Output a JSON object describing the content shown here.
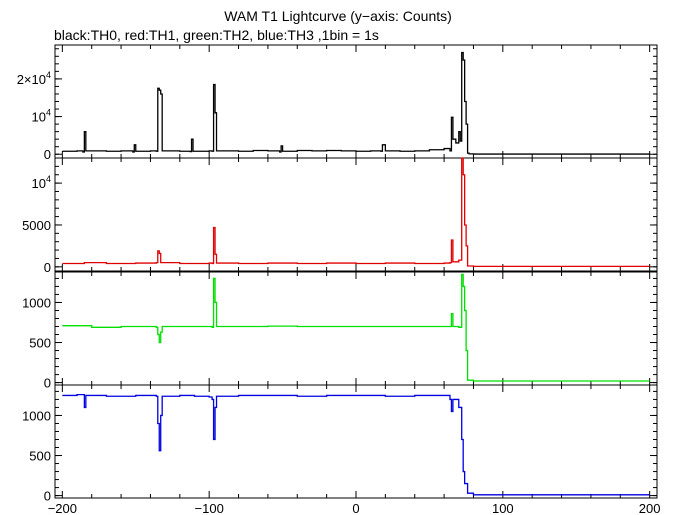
{
  "chart_data": {
    "type": "line",
    "title": "WAM T1 Lightcurve (y−axis: Counts)",
    "subtitle": "black:TH0, red:TH1, green:TH2, blue:TH3 ,1bin = 1s",
    "xlim": [
      -205,
      205
    ],
    "x_ticks": [
      -200,
      -100,
      0,
      100,
      200
    ],
    "x_tick_labels": [
      "−200",
      "−100",
      "0",
      "100",
      "200"
    ],
    "panels": [
      {
        "name": "TH0",
        "color": "#000000",
        "ylim": [
          -1000,
          29000
        ],
        "y_ticks": [
          {
            "value": 0,
            "label": "0"
          },
          {
            "value": 10000,
            "label": "10",
            "sup": "4"
          },
          {
            "value": 20000,
            "label": "2×10",
            "sup": "4"
          }
        ],
        "points": [
          [
            -200,
            800
          ],
          [
            -190,
            900
          ],
          [
            -186,
            600
          ],
          [
            -185,
            6000
          ],
          [
            -184,
            900
          ],
          [
            -170,
            800
          ],
          [
            -160,
            900
          ],
          [
            -152,
            600
          ],
          [
            -151,
            2500
          ],
          [
            -150,
            800
          ],
          [
            -140,
            900
          ],
          [
            -136,
            800
          ],
          [
            -135,
            17500
          ],
          [
            -134,
            17000
          ],
          [
            -133,
            16000
          ],
          [
            -132,
            900
          ],
          [
            -120,
            800
          ],
          [
            -113,
            700
          ],
          [
            -112,
            4000
          ],
          [
            -111,
            800
          ],
          [
            -100,
            900
          ],
          [
            -98,
            800
          ],
          [
            -97,
            18500
          ],
          [
            -96,
            11000
          ],
          [
            -95,
            900
          ],
          [
            -80,
            800
          ],
          [
            -70,
            1000
          ],
          [
            -60,
            900
          ],
          [
            -52,
            600
          ],
          [
            -51,
            2200
          ],
          [
            -50,
            800
          ],
          [
            -40,
            1000
          ],
          [
            -30,
            900
          ],
          [
            -20,
            1000
          ],
          [
            -10,
            900
          ],
          [
            0,
            800
          ],
          [
            10,
            900
          ],
          [
            17,
            800
          ],
          [
            18,
            2500
          ],
          [
            20,
            900
          ],
          [
            30,
            800
          ],
          [
            40,
            900
          ],
          [
            50,
            1200
          ],
          [
            60,
            1500
          ],
          [
            64,
            900
          ],
          [
            65,
            9800
          ],
          [
            66,
            4000
          ],
          [
            68,
            3000
          ],
          [
            70,
            6000
          ],
          [
            71,
            3500
          ],
          [
            72,
            27000
          ],
          [
            73,
            25000
          ],
          [
            74,
            14000
          ],
          [
            75,
            8000
          ],
          [
            76,
            300
          ],
          [
            77,
            100
          ],
          [
            80,
            50
          ],
          [
            100,
            50
          ],
          [
            150,
            50
          ],
          [
            200,
            50
          ]
        ]
      },
      {
        "name": "TH1",
        "color": "#e00000",
        "ylim": [
          -500,
          13000
        ],
        "y_ticks": [
          {
            "value": 0,
            "label": "0"
          },
          {
            "value": 5000,
            "label": "5000"
          },
          {
            "value": 10000,
            "label": "10",
            "sup": "4"
          }
        ],
        "points": [
          [
            -200,
            400
          ],
          [
            -185,
            500
          ],
          [
            -170,
            400
          ],
          [
            -150,
            450
          ],
          [
            -136,
            500
          ],
          [
            -135,
            1900
          ],
          [
            -134,
            1600
          ],
          [
            -133,
            500
          ],
          [
            -120,
            400
          ],
          [
            -100,
            450
          ],
          [
            -98,
            400
          ],
          [
            -97,
            4700
          ],
          [
            -96,
            1500
          ],
          [
            -95,
            450
          ],
          [
            -80,
            400
          ],
          [
            -60,
            450
          ],
          [
            -40,
            400
          ],
          [
            -20,
            450
          ],
          [
            0,
            400
          ],
          [
            20,
            450
          ],
          [
            40,
            400
          ],
          [
            60,
            450
          ],
          [
            64,
            500
          ],
          [
            65,
            3200
          ],
          [
            66,
            600
          ],
          [
            70,
            800
          ],
          [
            72,
            13000
          ],
          [
            73,
            11000
          ],
          [
            74,
            5000
          ],
          [
            75,
            2500
          ],
          [
            76,
            100
          ],
          [
            80,
            50
          ],
          [
            120,
            50
          ],
          [
            200,
            50
          ]
        ]
      },
      {
        "name": "TH2",
        "color": "#00e000",
        "ylim": [
          -30,
          1380
        ],
        "y_ticks": [
          {
            "value": 0,
            "label": "0"
          },
          {
            "value": 500,
            "label": "500"
          },
          {
            "value": 1000,
            "label": "1000"
          }
        ],
        "points": [
          [
            -200,
            710
          ],
          [
            -180,
            690
          ],
          [
            -160,
            700
          ],
          [
            -140,
            700
          ],
          [
            -136,
            690
          ],
          [
            -135,
            600
          ],
          [
            -134,
            500
          ],
          [
            -133,
            630
          ],
          [
            -132,
            700
          ],
          [
            -120,
            700
          ],
          [
            -100,
            700
          ],
          [
            -98,
            690
          ],
          [
            -97,
            1300
          ],
          [
            -96,
            1000
          ],
          [
            -95,
            700
          ],
          [
            -80,
            700
          ],
          [
            -60,
            705
          ],
          [
            -40,
            700
          ],
          [
            -20,
            700
          ],
          [
            0,
            700
          ],
          [
            20,
            700
          ],
          [
            40,
            700
          ],
          [
            60,
            700
          ],
          [
            64,
            700
          ],
          [
            65,
            860
          ],
          [
            66,
            700
          ],
          [
            70,
            690
          ],
          [
            72,
            1350
          ],
          [
            73,
            1200
          ],
          [
            74,
            900
          ],
          [
            75,
            400
          ],
          [
            76,
            30
          ],
          [
            80,
            20
          ],
          [
            120,
            20
          ],
          [
            200,
            20
          ]
        ]
      },
      {
        "name": "TH3",
        "color": "#0000e0",
        "ylim": [
          -30,
          1380
        ],
        "y_ticks": [
          {
            "value": 0,
            "label": "0"
          },
          {
            "value": 500,
            "label": "500"
          },
          {
            "value": 1000,
            "label": "1000"
          }
        ],
        "points": [
          [
            -200,
            1250
          ],
          [
            -190,
            1260
          ],
          [
            -185,
            1100
          ],
          [
            -184,
            1250
          ],
          [
            -170,
            1240
          ],
          [
            -150,
            1250
          ],
          [
            -136,
            1240
          ],
          [
            -135,
            900
          ],
          [
            -134,
            560
          ],
          [
            -133,
            1000
          ],
          [
            -132,
            1240
          ],
          [
            -120,
            1250
          ],
          [
            -110,
            1240
          ],
          [
            -100,
            1230
          ],
          [
            -98,
            1200
          ],
          [
            -97,
            700
          ],
          [
            -96,
            1100
          ],
          [
            -95,
            1240
          ],
          [
            -80,
            1250
          ],
          [
            -60,
            1250
          ],
          [
            -40,
            1240
          ],
          [
            -20,
            1250
          ],
          [
            0,
            1250
          ],
          [
            20,
            1240
          ],
          [
            40,
            1250
          ],
          [
            60,
            1250
          ],
          [
            64,
            1200
          ],
          [
            65,
            1050
          ],
          [
            66,
            1200
          ],
          [
            70,
            1100
          ],
          [
            72,
            700
          ],
          [
            73,
            300
          ],
          [
            74,
            150
          ],
          [
            76,
            30
          ],
          [
            80,
            10
          ],
          [
            120,
            10
          ],
          [
            200,
            10
          ]
        ]
      }
    ]
  }
}
